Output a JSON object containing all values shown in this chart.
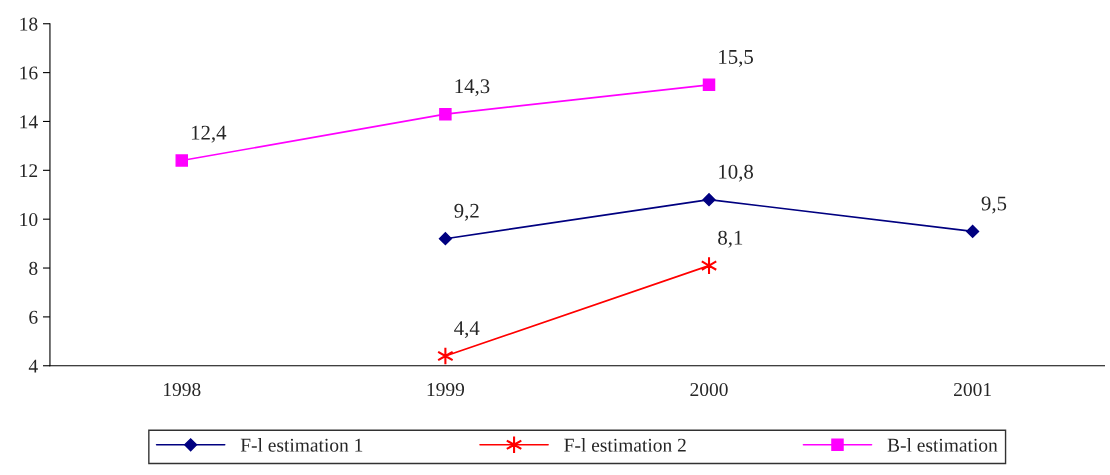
{
  "chart_data": {
    "type": "line",
    "categories": [
      "1998",
      "1999",
      "2000",
      "2001"
    ],
    "series": [
      {
        "name": "F-l estimation 1",
        "color": "#000080",
        "marker": "diamond",
        "values": [
          null,
          9.2,
          10.8,
          9.5
        ],
        "value_labels": [
          null,
          "9,2",
          "10,8",
          "9,5"
        ]
      },
      {
        "name": "F-l estimation 2",
        "color": "#ff0000",
        "marker": "cross",
        "values": [
          null,
          4.4,
          8.1,
          null
        ],
        "value_labels": [
          null,
          "4,4",
          "8,1",
          null
        ]
      },
      {
        "name": "B-l estimation",
        "color": "#ff00ff",
        "marker": "square",
        "values": [
          12.4,
          14.3,
          15.5,
          null
        ],
        "value_labels": [
          "12,4",
          "14,3",
          "15,5",
          null
        ]
      }
    ],
    "ylim": [
      4,
      18
    ],
    "yticks": [
      4,
      6,
      8,
      10,
      12,
      14,
      16,
      18
    ],
    "grid": false,
    "legend": "bottom",
    "line_style": "solid"
  }
}
